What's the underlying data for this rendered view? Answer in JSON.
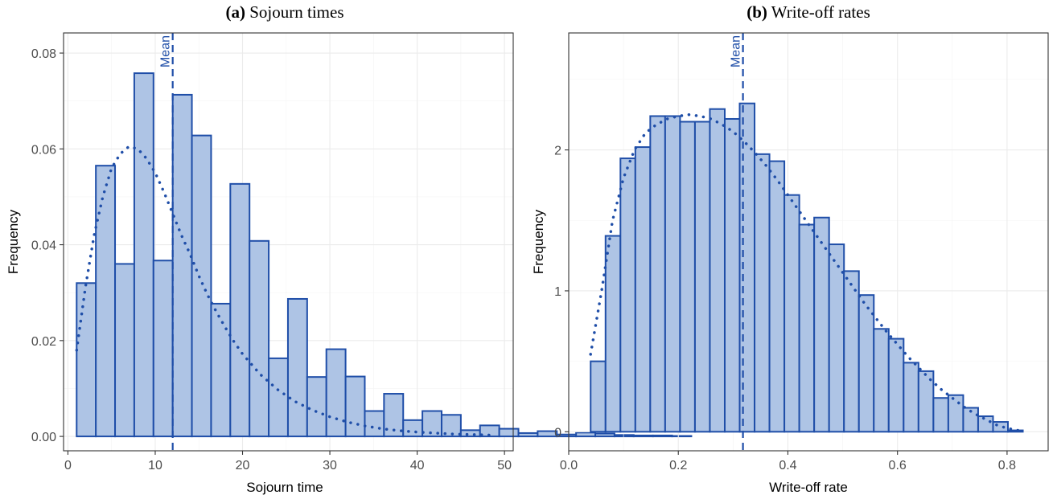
{
  "chart_data": [
    {
      "type": "bar",
      "subplot_tag": "(a)",
      "title": "Sojourn times",
      "xlabel": "Sojourn time",
      "ylabel": "Frequency",
      "xlim": [
        -0.5,
        51
      ],
      "ylim": [
        -0.003,
        0.0842
      ],
      "x_ticks": [
        0,
        10,
        20,
        30,
        40,
        50
      ],
      "y_ticks": [
        0.0,
        0.02,
        0.04,
        0.06,
        0.08
      ],
      "y_tick_labels": [
        "0.00",
        "0.02",
        "0.04",
        "0.06",
        "0.08"
      ],
      "bin_start": 1.0,
      "bin_width": 2.2,
      "bin_frequencies": [
        0.032,
        0.0565,
        0.036,
        0.0758,
        0.0367,
        0.0713,
        0.0628,
        0.0277,
        0.0527,
        0.0408,
        0.0163,
        0.0287,
        0.0124,
        0.0182,
        0.0125,
        0.0053,
        0.0089,
        0.0034,
        0.0053,
        0.0045,
        0.0013,
        0.0023,
        0.0016,
        0.0007,
        0.0011,
        0.0004,
        0.0008,
        0.0006,
        0.0003,
        0.0002,
        0.0002,
        0.0001
      ],
      "density_x": [
        1,
        2,
        3,
        4,
        5,
        6,
        7,
        8,
        9,
        10,
        11,
        12,
        13,
        14,
        15,
        16,
        17,
        18,
        19,
        20,
        22,
        24,
        26,
        28,
        30,
        32,
        34,
        36,
        38,
        40,
        42,
        44,
        46,
        48,
        49
      ],
      "density_y": [
        0.018,
        0.031,
        0.042,
        0.05,
        0.056,
        0.059,
        0.0605,
        0.06,
        0.058,
        0.055,
        0.051,
        0.0465,
        0.042,
        0.038,
        0.0335,
        0.0295,
        0.026,
        0.0228,
        0.0198,
        0.0172,
        0.013,
        0.0098,
        0.0073,
        0.0055,
        0.0041,
        0.003,
        0.0022,
        0.0016,
        0.0012,
        0.0009,
        0.0007,
        0.0005,
        0.0004,
        0.0003,
        0.0002
      ],
      "mean": 12.0,
      "mean_label": "Mean",
      "grid": true,
      "colors": {
        "bar_fill": "#aec4e5",
        "bar_stroke": "#1f4ea8",
        "line": "#1f4ea8"
      }
    },
    {
      "type": "bar",
      "subplot_tag": "(b)",
      "title": "Write-off rates",
      "xlabel": "Write-off rate",
      "ylabel": "Frequency",
      "xlim": [
        0.0,
        0.875
      ],
      "ylim": [
        -0.135,
        2.83
      ],
      "x_ticks": [
        0.0,
        0.2,
        0.4,
        0.6,
        0.8
      ],
      "x_tick_labels": [
        "0.0",
        "0.2",
        "0.4",
        "0.6",
        "0.8"
      ],
      "y_ticks": [
        0,
        1,
        2
      ],
      "y_tick_labels": [
        "0",
        "1",
        "2"
      ],
      "bin_start": 0.04,
      "bin_width": 0.0272,
      "bin_frequencies": [
        0.5,
        1.39,
        1.94,
        2.02,
        2.24,
        2.24,
        2.2,
        2.2,
        2.29,
        2.22,
        2.33,
        1.97,
        1.92,
        1.68,
        1.47,
        1.52,
        1.33,
        1.14,
        0.97,
        0.73,
        0.66,
        0.49,
        0.43,
        0.24,
        0.26,
        0.17,
        0.11,
        0.07,
        0.01
      ],
      "density_x": [
        0.04,
        0.06,
        0.08,
        0.1,
        0.12,
        0.14,
        0.16,
        0.18,
        0.2,
        0.22,
        0.24,
        0.26,
        0.28,
        0.3,
        0.32,
        0.34,
        0.36,
        0.38,
        0.4,
        0.42,
        0.44,
        0.46,
        0.48,
        0.5,
        0.52,
        0.54,
        0.56,
        0.58,
        0.6,
        0.62,
        0.64,
        0.66,
        0.68,
        0.7,
        0.72,
        0.74,
        0.76,
        0.78,
        0.8,
        0.82
      ],
      "density_y": [
        0.55,
        1.0,
        1.5,
        1.8,
        2.0,
        2.12,
        2.18,
        2.22,
        2.24,
        2.25,
        2.24,
        2.22,
        2.18,
        2.13,
        2.06,
        1.98,
        1.89,
        1.79,
        1.68,
        1.57,
        1.46,
        1.35,
        1.24,
        1.13,
        1.02,
        0.91,
        0.81,
        0.71,
        0.62,
        0.53,
        0.45,
        0.37,
        0.3,
        0.24,
        0.18,
        0.13,
        0.09,
        0.05,
        0.025,
        0.01
      ],
      "mean": 0.318,
      "mean_label": "Mean",
      "grid": true,
      "colors": {
        "bar_fill": "#aec4e5",
        "bar_stroke": "#1f4ea8",
        "line": "#1f4ea8"
      }
    }
  ]
}
